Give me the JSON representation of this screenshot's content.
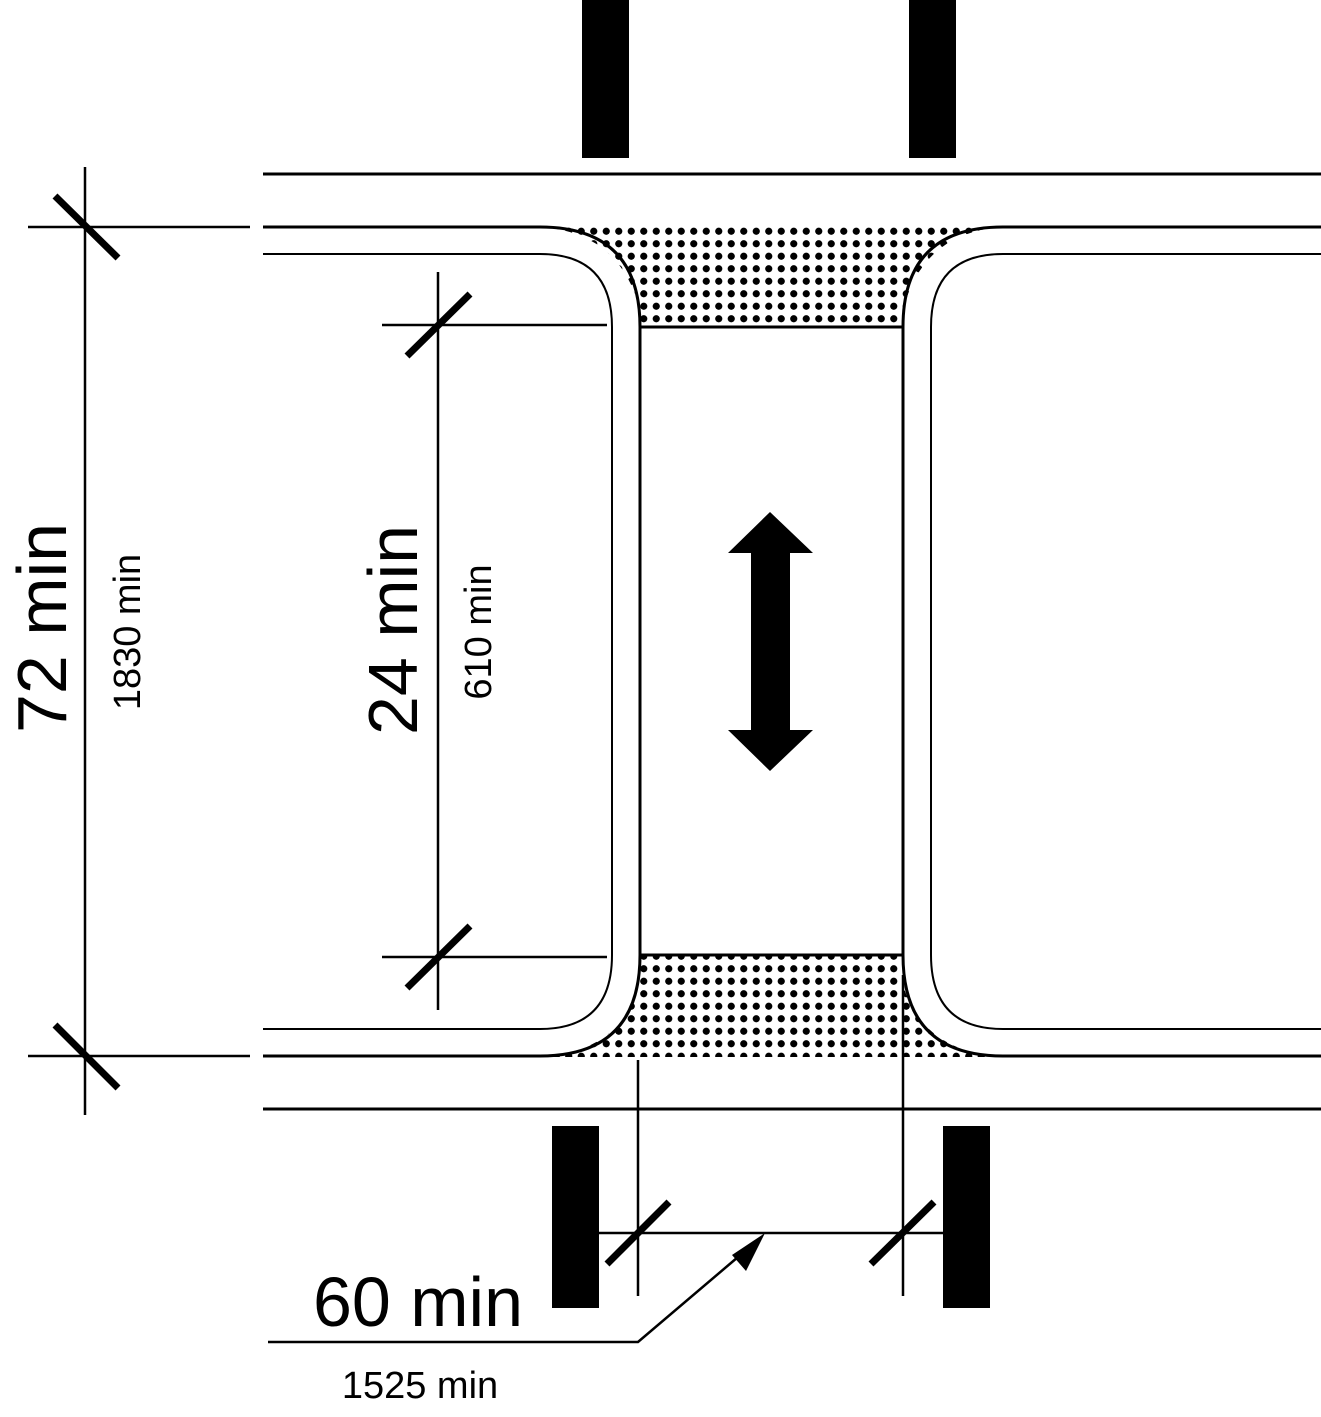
{
  "dimensions": {
    "total_length": {
      "imperial": "72 min",
      "metric": "1830 min"
    },
    "crossing_width": {
      "imperial": "24 min",
      "metric": "610 min"
    },
    "island_length": {
      "imperial": "60 min",
      "metric": "1525 min"
    }
  },
  "colors": {
    "ink": "#000000",
    "paper": "#ffffff",
    "detectable_warning_dots": "#000000"
  },
  "icons": {
    "travel_direction": "double-headed-arrow-icon"
  }
}
